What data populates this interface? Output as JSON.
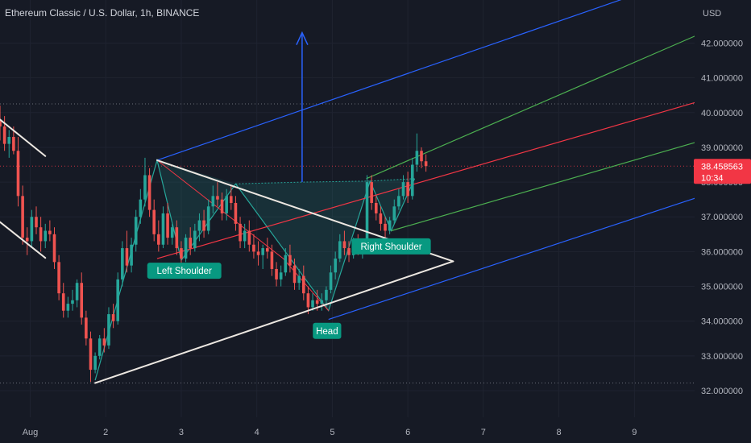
{
  "header": {
    "title": "Ethereum Classic / U.S. Dollar, 1h, BINANCE"
  },
  "chart_data": {
    "type": "candlestick",
    "symbol": "Ethereum Classic / U.S. Dollar",
    "interval": "1h",
    "exchange": "BINANCE",
    "currency": "USD",
    "ylim": [
      31.85,
      43.35
    ],
    "y_ticks": [
      "32.000000",
      "33.000000",
      "34.000000",
      "35.000000",
      "36.000000",
      "37.000000",
      "38.000000",
      "39.000000",
      "40.000000",
      "41.000000",
      "42.000000"
    ],
    "x_ticks": [
      "Aug",
      "2",
      "3",
      "4",
      "5",
      "6",
      "7",
      "8",
      "9"
    ],
    "x_tick_days": [
      1,
      2,
      3,
      4,
      5,
      6,
      7,
      8,
      9
    ],
    "xlim_days": [
      0.6,
      9.82
    ],
    "last_price": {
      "value": "38.458563",
      "countdown": "10:34"
    },
    "candles": [
      [
        0.6,
        39.8,
        40.2,
        39.2,
        39.6
      ],
      [
        0.66,
        39.6,
        39.9,
        38.9,
        39.1
      ],
      [
        0.72,
        39.1,
        39.5,
        38.7,
        39.3
      ],
      [
        0.78,
        39.3,
        39.6,
        38.8,
        38.9
      ],
      [
        0.84,
        38.9,
        39.3,
        37.3,
        37.6
      ],
      [
        0.9,
        37.6,
        37.9,
        36.2,
        36.4
      ],
      [
        0.96,
        36.4,
        36.7,
        35.9,
        36.3
      ],
      [
        1.02,
        36.3,
        37.2,
        36.1,
        37.0
      ],
      [
        1.08,
        37.0,
        37.3,
        36.5,
        36.7
      ],
      [
        1.14,
        36.7,
        37.0,
        36.0,
        36.3
      ],
      [
        1.2,
        36.3,
        36.8,
        36.1,
        36.6
      ],
      [
        1.26,
        36.6,
        36.9,
        36.3,
        36.5
      ],
      [
        1.32,
        36.5,
        36.7,
        35.5,
        35.7
      ],
      [
        1.38,
        35.7,
        35.9,
        34.6,
        34.8
      ],
      [
        1.44,
        34.8,
        35.1,
        34.1,
        34.3
      ],
      [
        1.5,
        34.3,
        34.7,
        34.1,
        34.5
      ],
      [
        1.56,
        34.5,
        34.9,
        34.3,
        34.6
      ],
      [
        1.62,
        34.6,
        35.2,
        34.4,
        35.1
      ],
      [
        1.68,
        35.1,
        35.4,
        33.9,
        34.1
      ],
      [
        1.74,
        34.1,
        34.3,
        33.3,
        33.5
      ],
      [
        1.8,
        33.5,
        33.7,
        32.25,
        32.6
      ],
      [
        1.86,
        32.6,
        33.1,
        32.5,
        33.0
      ],
      [
        1.92,
        33.0,
        33.6,
        32.9,
        33.5
      ],
      [
        1.98,
        33.5,
        33.8,
        33.1,
        33.3
      ],
      [
        2.04,
        33.3,
        34.4,
        33.2,
        34.2
      ],
      [
        2.1,
        34.2,
        34.5,
        33.8,
        34.0
      ],
      [
        2.16,
        34.0,
        35.4,
        33.9,
        35.2
      ],
      [
        2.22,
        35.2,
        36.3,
        35.0,
        36.1
      ],
      [
        2.28,
        36.1,
        36.6,
        35.4,
        35.6
      ],
      [
        2.34,
        35.6,
        36.4,
        35.4,
        36.2
      ],
      [
        2.4,
        36.2,
        37.2,
        36.0,
        37.0
      ],
      [
        2.46,
        37.0,
        37.8,
        36.8,
        37.5
      ],
      [
        2.52,
        37.5,
        38.7,
        37.3,
        38.2
      ],
      [
        2.58,
        38.2,
        38.4,
        37.0,
        37.2
      ],
      [
        2.64,
        37.2,
        37.5,
        36.3,
        36.5
      ],
      [
        2.7,
        36.5,
        36.9,
        36.0,
        36.2
      ],
      [
        2.76,
        36.2,
        37.3,
        36.1,
        37.1
      ],
      [
        2.82,
        37.1,
        37.4,
        36.2,
        36.4
      ],
      [
        2.88,
        36.4,
        36.8,
        36.2,
        36.7
      ],
      [
        2.94,
        36.7,
        36.9,
        35.9,
        36.1
      ],
      [
        3.0,
        36.1,
        36.3,
        35.6,
        35.8
      ],
      [
        3.06,
        35.8,
        36.5,
        35.7,
        36.4
      ],
      [
        3.12,
        36.4,
        36.7,
        35.9,
        36.1
      ],
      [
        3.18,
        36.1,
        36.8,
        36.0,
        36.6
      ],
      [
        3.24,
        36.6,
        37.1,
        36.3,
        36.9
      ],
      [
        3.3,
        36.9,
        37.2,
        36.4,
        36.6
      ],
      [
        3.36,
        36.6,
        37.5,
        36.5,
        37.3
      ],
      [
        3.42,
        37.3,
        37.9,
        37.1,
        37.6
      ],
      [
        3.48,
        37.6,
        38.0,
        37.3,
        37.5
      ],
      [
        3.54,
        37.5,
        37.7,
        36.9,
        37.1
      ],
      [
        3.6,
        37.1,
        37.8,
        36.9,
        37.6
      ],
      [
        3.66,
        37.6,
        37.9,
        37.2,
        37.4
      ],
      [
        3.72,
        37.4,
        37.6,
        36.6,
        36.8
      ],
      [
        3.78,
        36.8,
        37.0,
        36.1,
        36.3
      ],
      [
        3.84,
        36.3,
        36.8,
        36.1,
        36.6
      ],
      [
        3.9,
        36.6,
        36.9,
        36.0,
        36.2
      ],
      [
        3.96,
        36.2,
        36.5,
        35.8,
        36.0
      ],
      [
        4.02,
        36.0,
        36.3,
        35.6,
        35.9
      ],
      [
        4.08,
        35.9,
        36.2,
        35.5,
        36.1
      ],
      [
        4.14,
        36.1,
        36.4,
        35.8,
        36.0
      ],
      [
        4.2,
        36.0,
        36.2,
        35.3,
        35.5
      ],
      [
        4.26,
        35.5,
        35.7,
        35.0,
        35.2
      ],
      [
        4.32,
        35.2,
        35.6,
        35.0,
        35.4
      ],
      [
        4.38,
        35.4,
        36.1,
        35.3,
        35.9
      ],
      [
        4.44,
        35.9,
        36.2,
        35.4,
        35.6
      ],
      [
        4.5,
        35.6,
        35.8,
        34.9,
        35.1
      ],
      [
        4.56,
        35.1,
        35.5,
        34.9,
        35.3
      ],
      [
        4.62,
        35.3,
        35.6,
        34.6,
        34.8
      ],
      [
        4.68,
        34.8,
        35.0,
        34.2,
        34.4
      ],
      [
        4.74,
        34.4,
        34.8,
        34.3,
        34.6
      ],
      [
        4.8,
        34.6,
        34.9,
        34.3,
        34.5
      ],
      [
        4.86,
        34.5,
        34.8,
        34.3,
        34.6
      ],
      [
        4.92,
        34.6,
        35.0,
        34.4,
        34.9
      ],
      [
        4.98,
        34.9,
        35.6,
        34.8,
        35.4
      ],
      [
        5.04,
        35.4,
        36.0,
        35.2,
        35.8
      ],
      [
        5.1,
        35.8,
        36.5,
        35.7,
        36.3
      ],
      [
        5.16,
        36.3,
        36.6,
        35.9,
        36.1
      ],
      [
        5.22,
        36.1,
        36.3,
        35.7,
        35.9
      ],
      [
        5.28,
        35.9,
        36.4,
        35.8,
        36.2
      ],
      [
        5.34,
        36.2,
        36.5,
        35.9,
        36.0
      ],
      [
        5.4,
        36.0,
        36.3,
        35.8,
        36.1
      ],
      [
        5.46,
        36.1,
        38.2,
        36.0,
        38.0
      ],
      [
        5.52,
        38.0,
        38.2,
        37.2,
        37.4
      ],
      [
        5.58,
        37.4,
        37.6,
        36.9,
        37.1
      ],
      [
        5.64,
        37.1,
        37.3,
        36.6,
        36.8
      ],
      [
        5.7,
        36.8,
        37.0,
        36.4,
        36.6
      ],
      [
        5.76,
        36.6,
        37.0,
        36.5,
        36.9
      ],
      [
        5.82,
        36.9,
        37.5,
        36.8,
        37.3
      ],
      [
        5.88,
        37.3,
        37.8,
        37.2,
        37.6
      ],
      [
        5.94,
        37.6,
        38.2,
        37.5,
        38.0
      ],
      [
        6.0,
        38.0,
        38.3,
        37.4,
        37.6
      ],
      [
        6.06,
        37.6,
        38.7,
        37.5,
        38.5
      ],
      [
        6.12,
        38.5,
        39.4,
        38.3,
        38.9
      ],
      [
        6.18,
        38.9,
        39.0,
        38.4,
        38.6
      ],
      [
        6.24,
        38.6,
        38.8,
        38.3,
        38.46
      ]
    ],
    "annotations": [
      {
        "text": "Left Shoulder",
        "day": 3.04,
        "price": 35.45
      },
      {
        "text": "Head",
        "day": 4.93,
        "price": 33.72
      },
      {
        "text": "Right Shoulder",
        "day": 5.78,
        "price": 36.15
      }
    ]
  },
  "colors": {
    "background": "#161a25",
    "bullish": "#26a69a",
    "bearish": "#ef5350",
    "channel_outer": "#2962ff",
    "channel_mid": "#f23645",
    "channel_inner": "#4caf50",
    "trendline": "#ece7e1",
    "arrow": "#2962ff",
    "price_tag": "#f23645",
    "label_bg": "#089981"
  }
}
